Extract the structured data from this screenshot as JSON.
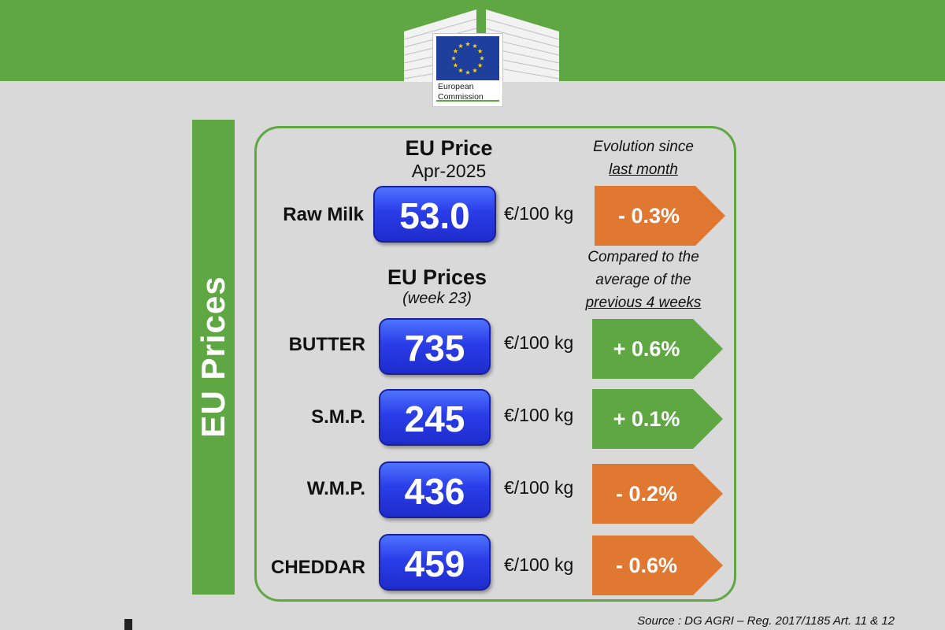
{
  "header": {
    "logo": {
      "line1": "European",
      "line2": "Commission"
    },
    "colors": {
      "green": "#5ea742",
      "eu_blue": "#1f3f9c",
      "star": "#ffd400"
    }
  },
  "sidebar": {
    "title": "EU Prices"
  },
  "monthly": {
    "title": "EU Price",
    "period": "Apr-2025",
    "note_line1": "Evolution since",
    "note_line2": "last month",
    "item": {
      "label": "Raw Milk",
      "price": "53.0",
      "unit": "€/100 kg",
      "change": "- 0.3%",
      "trend": "down"
    }
  },
  "weekly": {
    "title": "EU Prices",
    "period": "(week 23)",
    "note_line1": "Compared to the",
    "note_line2": "average of the",
    "note_line3": "previous 4 weeks",
    "items": [
      {
        "label": "BUTTER",
        "price": "735",
        "unit": "€/100 kg",
        "change": "+ 0.6%",
        "trend": "up"
      },
      {
        "label": "S.M.P.",
        "price": "245",
        "unit": "€/100 kg",
        "change": "+ 0.1%",
        "trend": "up"
      },
      {
        "label": "W.M.P.",
        "price": "436",
        "unit": "€/100 kg",
        "change": "- 0.2%",
        "trend": "down"
      },
      {
        "label": "CHEDDAR",
        "price": "459",
        "unit": "€/100 kg",
        "change": "- 0.6%",
        "trend": "down"
      }
    ]
  },
  "trend_colors": {
    "up": "#5ea742",
    "down": "#e07832"
  },
  "source": "Source : DG AGRI – Reg. 2017/1185 Art. 11 & 12"
}
